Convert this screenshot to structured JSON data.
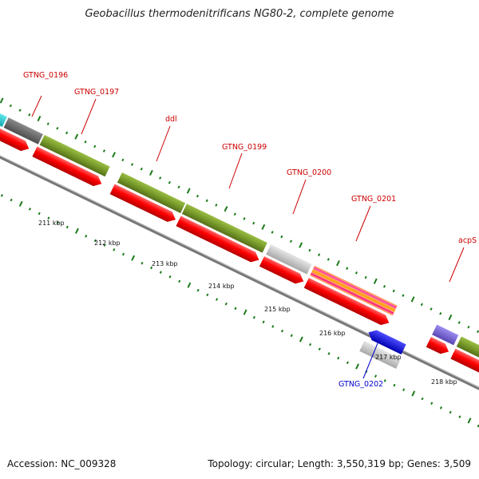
{
  "title": "Geobacillus thermodenitrificans NG80-2, complete genome",
  "footer": {
    "accession": "Accession: NC_009328",
    "summary": "Topology: circular; Length: 3,550,319 bp; Genes: 3,509"
  },
  "colors": {
    "forward_cds": "#ff0000",
    "label_forward": "#cc0000",
    "label_reverse": "#0000cc",
    "gene_green": "#779a2a",
    "gene_grey": "#666666",
    "gene_light_grey": "#bfbfbf",
    "gene_purple": "#7b69d6",
    "gene_cyan": "#26cfd3",
    "reverse_cds": "#0000ee",
    "tick_green": "#1a7a1a",
    "backbone": "#888888"
  },
  "scale": {
    "unit": "kbp",
    "ticks": [
      "211 kbp",
      "212 kbp",
      "213 kbp",
      "214 kbp",
      "215 kbp",
      "216 kbp",
      "217 kbp",
      "218 kbp"
    ]
  },
  "genes": [
    {
      "label": "GTNG_0196",
      "strand": "+",
      "color": "#666666"
    },
    {
      "label": "GTNG_0197",
      "strand": "+",
      "color": "#779a2a"
    },
    {
      "label": "ddl",
      "strand": "+",
      "color": "#779a2a"
    },
    {
      "label": "GTNG_0199",
      "strand": "+",
      "color": "#779a2a"
    },
    {
      "label": "GTNG_0200",
      "strand": "+",
      "color": "#bfbfbf"
    },
    {
      "label": "GTNG_0201",
      "strand": "+",
      "color": "striped"
    },
    {
      "label": "GTNG_0202",
      "strand": "-",
      "color": "#bfbfbf"
    },
    {
      "label": "acpS",
      "strand": "+",
      "color": "#7b69d6"
    }
  ]
}
